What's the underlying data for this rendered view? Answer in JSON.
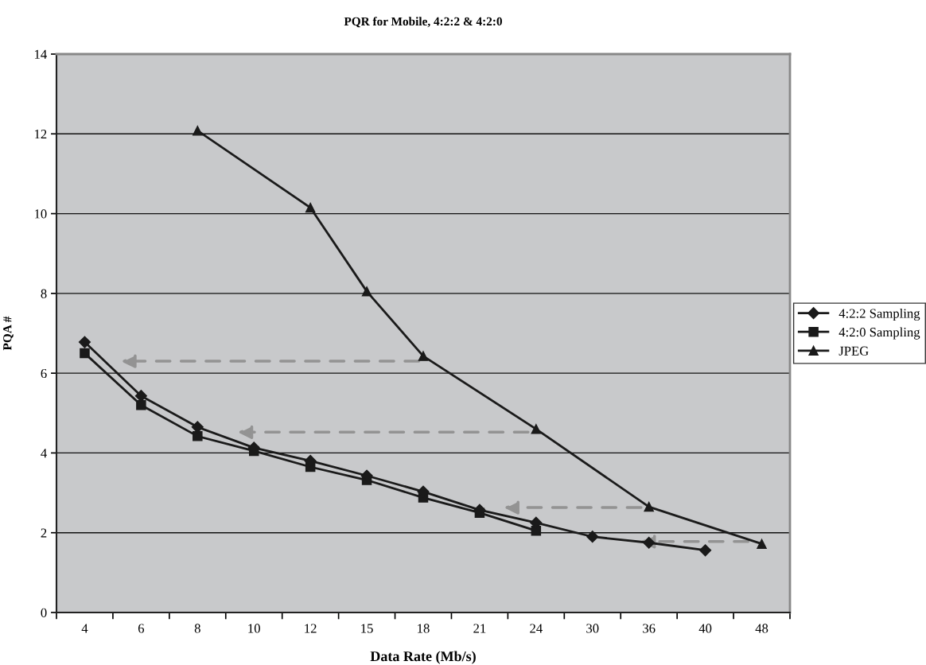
{
  "chart_data": {
    "type": "line",
    "title": "PQR for Mobile, 4:2:2 & 4:2:0",
    "xlabel": "Data Rate (Mb/s)",
    "ylabel": "PQA #",
    "categories": [
      "4",
      "6",
      "8",
      "10",
      "12",
      "15",
      "18",
      "21",
      "24",
      "30",
      "36",
      "40",
      "48"
    ],
    "series": [
      {
        "name": "4:2:2 Sampling",
        "color": "#1a1a1a",
        "marker": "diamond",
        "values": [
          6.78,
          5.43,
          4.65,
          4.13,
          3.8,
          3.43,
          3.03,
          2.57,
          2.25,
          1.9,
          1.75,
          1.56,
          null
        ]
      },
      {
        "name": "4:2:0 Sampling",
        "color": "#1a1a1a",
        "marker": "square",
        "values": [
          6.5,
          5.2,
          4.42,
          4.05,
          3.65,
          3.32,
          2.88,
          2.5,
          2.05,
          null,
          null,
          null,
          null
        ]
      },
      {
        "name": "JPEG",
        "color": "#1a1a1a",
        "marker": "triangle",
        "values": [
          null,
          null,
          12.08,
          null,
          10.15,
          8.05,
          6.43,
          null,
          4.6,
          null,
          2.65,
          null,
          1.72
        ]
      }
    ],
    "ylim": [
      0,
      14
    ],
    "yticks": [
      0,
      2,
      4,
      6,
      8,
      10,
      12,
      14
    ],
    "grid": "y",
    "legend": "right",
    "line_style": "solid"
  }
}
